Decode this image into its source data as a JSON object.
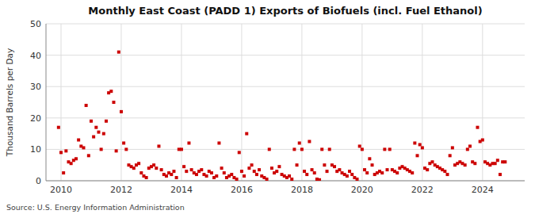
{
  "chart_data": {
    "type": "scatter",
    "title": "Monthly East Coast (PADD 1) Exports of Biofuels (incl. Fuel Ethanol)",
    "y_label": "Thousand Barrels per Day",
    "annotations": [
      "Source: U.S. Energy Information Administration"
    ],
    "color": "#cc0000",
    "marker": "square",
    "grid": true,
    "xlim": [
      2009.5,
      2025.4
    ],
    "xticks": [
      2010,
      2012,
      2014,
      2016,
      2018,
      2020,
      2022,
      2024
    ],
    "ylim": [
      0,
      50
    ],
    "yticks": [
      0,
      10,
      20,
      30,
      40,
      50
    ],
    "x": [
      2009.917,
      2010.0,
      2010.083,
      2010.167,
      2010.25,
      2010.333,
      2010.417,
      2010.5,
      2010.583,
      2010.667,
      2010.75,
      2010.833,
      2010.917,
      2011.0,
      2011.083,
      2011.167,
      2011.25,
      2011.333,
      2011.417,
      2011.5,
      2011.583,
      2011.667,
      2011.75,
      2011.833,
      2011.917,
      2012.0,
      2012.083,
      2012.167,
      2012.25,
      2012.333,
      2012.417,
      2012.5,
      2012.583,
      2012.667,
      2012.75,
      2012.833,
      2012.917,
      2013.0,
      2013.083,
      2013.167,
      2013.25,
      2013.333,
      2013.417,
      2013.5,
      2013.583,
      2013.667,
      2013.75,
      2013.833,
      2013.917,
      2014.0,
      2014.083,
      2014.167,
      2014.25,
      2014.333,
      2014.417,
      2014.5,
      2014.583,
      2014.667,
      2014.75,
      2014.833,
      2014.917,
      2015.0,
      2015.083,
      2015.167,
      2015.25,
      2015.333,
      2015.417,
      2015.5,
      2015.583,
      2015.667,
      2015.75,
      2015.833,
      2015.917,
      2016.0,
      2016.083,
      2016.167,
      2016.25,
      2016.333,
      2016.417,
      2016.5,
      2016.583,
      2016.667,
      2016.75,
      2016.833,
      2016.917,
      2017.0,
      2017.083,
      2017.167,
      2017.25,
      2017.333,
      2017.417,
      2017.5,
      2017.583,
      2017.667,
      2017.75,
      2017.833,
      2017.917,
      2018.0,
      2018.083,
      2018.167,
      2018.25,
      2018.333,
      2018.417,
      2018.5,
      2018.583,
      2018.667,
      2018.75,
      2018.833,
      2018.917,
      2019.0,
      2019.083,
      2019.167,
      2019.25,
      2019.333,
      2019.417,
      2019.5,
      2019.583,
      2019.667,
      2019.75,
      2019.833,
      2019.917,
      2020.0,
      2020.083,
      2020.167,
      2020.25,
      2020.333,
      2020.417,
      2020.5,
      2020.583,
      2020.667,
      2020.75,
      2020.833,
      2020.917,
      2021.0,
      2021.083,
      2021.167,
      2021.25,
      2021.333,
      2021.417,
      2021.5,
      2021.583,
      2021.667,
      2021.75,
      2021.833,
      2021.917,
      2022.0,
      2022.083,
      2022.167,
      2022.25,
      2022.333,
      2022.417,
      2022.5,
      2022.583,
      2022.667,
      2022.75,
      2022.833,
      2022.917,
      2023.0,
      2023.083,
      2023.167,
      2023.25,
      2023.333,
      2023.417,
      2023.5,
      2023.583,
      2023.667,
      2023.75,
      2023.833,
      2023.917,
      2024.0,
      2024.083,
      2024.167,
      2024.25,
      2024.333,
      2024.417,
      2024.5,
      2024.583,
      2024.667,
      2024.75
    ],
    "values": [
      17.0,
      9.0,
      2.5,
      9.5,
      6.0,
      5.5,
      6.5,
      7.0,
      13.0,
      11.0,
      10.5,
      24.0,
      8.0,
      19.0,
      14.0,
      17.0,
      15.5,
      10.0,
      15.0,
      19.0,
      28.0,
      28.5,
      25.0,
      9.5,
      41.0,
      22.0,
      12.0,
      10.0,
      5.0,
      4.5,
      4.0,
      5.0,
      5.5,
      2.5,
      1.5,
      1.0,
      4.0,
      4.5,
      5.0,
      4.0,
      11.0,
      3.5,
      2.0,
      1.5,
      2.5,
      2.0,
      3.0,
      1.0,
      10.0,
      10.0,
      4.5,
      3.0,
      12.0,
      3.5,
      2.5,
      2.0,
      3.0,
      3.5,
      2.0,
      1.5,
      3.0,
      2.5,
      1.0,
      1.5,
      12.0,
      4.0,
      2.5,
      1.0,
      1.5,
      2.0,
      1.0,
      0.5,
      9.0,
      3.0,
      1.5,
      15.0,
      4.0,
      5.0,
      3.0,
      2.0,
      3.5,
      1.5,
      1.0,
      0.5,
      10.0,
      4.0,
      2.5,
      3.0,
      4.5,
      2.0,
      1.5,
      1.0,
      1.5,
      0.5,
      10.0,
      5.0,
      12.0,
      10.0,
      3.0,
      2.0,
      12.5,
      3.5,
      2.5,
      0.5,
      0.3,
      10.0,
      5.0,
      3.0,
      10.0,
      5.0,
      4.5,
      3.0,
      3.5,
      2.5,
      2.0,
      1.5,
      3.0,
      2.0,
      1.0,
      0.5,
      11.0,
      10.0,
      3.5,
      2.5,
      7.0,
      5.0,
      2.0,
      2.5,
      3.0,
      2.5,
      10.0,
      3.5,
      10.0,
      3.5,
      3.0,
      2.5,
      4.0,
      4.5,
      4.0,
      3.5,
      3.0,
      2.5,
      12.0,
      8.0,
      11.5,
      10.5,
      4.0,
      3.5,
      5.5,
      6.0,
      5.0,
      4.5,
      4.0,
      3.5,
      3.0,
      2.0,
      8.0,
      10.5,
      5.0,
      5.5,
      6.0,
      5.5,
      5.0,
      10.0,
      11.0,
      6.0,
      5.5,
      17.0,
      12.5,
      13.0,
      6.0,
      5.5,
      5.0,
      5.5,
      5.5,
      6.5,
      2.0,
      6.0,
      6.0
    ]
  }
}
